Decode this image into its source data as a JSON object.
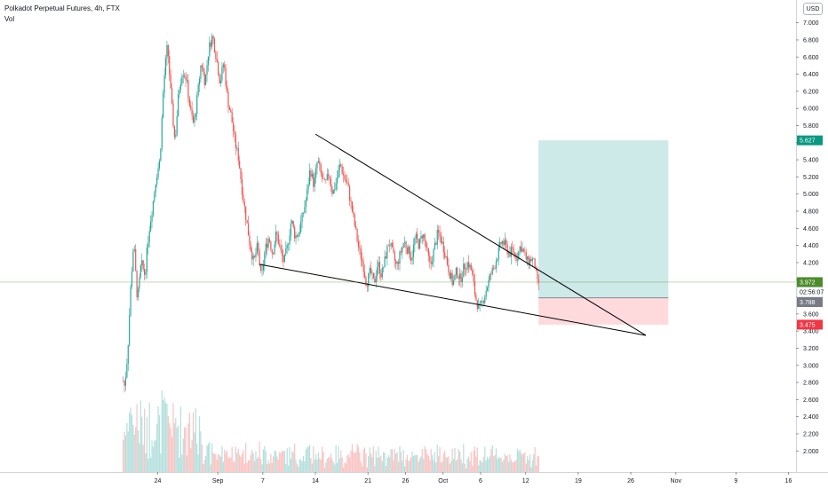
{
  "legend": {
    "symbol_line": "Polkadot Perpetual Futures, 4h, FTX",
    "volume_label": "Vol"
  },
  "currency_button": "USD",
  "colors": {
    "up": "#26a69a",
    "down": "#ef5350",
    "profit_zone": "#b2dfdb",
    "loss_zone": "#ffcdd2",
    "target_badge": "#089981",
    "stop_badge": "#f23645",
    "last_price_badge": "#4c8c2b",
    "countdown_badge": "#ffffff",
    "entry_badge": "#787b86",
    "trendline": "#000000"
  },
  "chart_data": {
    "type": "candlestick",
    "title": "Polkadot Perpetual Futures, 4h, FTX",
    "timeframe": "4h",
    "exchange": "FTX",
    "ylim": [
      1.92,
      7.1
    ],
    "y_ticks": [
      "7.000",
      "6.800",
      "6.600",
      "6.400",
      "6.200",
      "6.000",
      "5.800",
      "5.600",
      "5.400",
      "5.200",
      "5.000",
      "4.800",
      "4.600",
      "4.400",
      "4.200",
      "4.000",
      "3.800",
      "3.600",
      "3.400",
      "3.200",
      "3.000",
      "2.800",
      "2.600",
      "2.400",
      "2.200",
      "2.000"
    ],
    "x_ticks": [
      {
        "label": "24",
        "day": 24.0
      },
      {
        "label": "Sep",
        "day": 32.0
      },
      {
        "label": "7",
        "day": 38.0
      },
      {
        "label": "14",
        "day": 45.0
      },
      {
        "label": "21",
        "day": 52.0
      },
      {
        "label": "26",
        "day": 57.0
      },
      {
        "label": "Oct",
        "day": 62.0
      },
      {
        "label": "6",
        "day": 67.0
      },
      {
        "label": "12",
        "day": 73.0
      },
      {
        "label": "19",
        "day": 80.0
      },
      {
        "label": "26",
        "day": 87.0
      },
      {
        "label": "Nov",
        "day": 93.0
      },
      {
        "label": "9",
        "day": 101.0
      },
      {
        "label": "16",
        "day": 108.0
      }
    ],
    "x_range_days": [
      3.0,
      109.0
    ],
    "price_path": [
      [
        19.4,
        2.82
      ],
      [
        19.6,
        2.75
      ],
      [
        20.0,
        3.15
      ],
      [
        20.4,
        3.9
      ],
      [
        20.8,
        4.45
      ],
      [
        21.3,
        3.75
      ],
      [
        21.8,
        4.2
      ],
      [
        22.3,
        4.05
      ],
      [
        22.8,
        4.55
      ],
      [
        23.3,
        4.85
      ],
      [
        23.8,
        5.2
      ],
      [
        24.3,
        5.4
      ],
      [
        24.8,
        6.3
      ],
      [
        25.3,
        6.75
      ],
      [
        25.8,
        6.1
      ],
      [
        26.3,
        5.6
      ],
      [
        26.8,
        6.2
      ],
      [
        27.3,
        6.45
      ],
      [
        27.8,
        6.35
      ],
      [
        28.3,
        6.0
      ],
      [
        28.8,
        5.8
      ],
      [
        29.3,
        6.15
      ],
      [
        29.8,
        6.55
      ],
      [
        30.3,
        6.3
      ],
      [
        30.8,
        6.7
      ],
      [
        31.3,
        6.85
      ],
      [
        31.8,
        6.6
      ],
      [
        32.3,
        6.3
      ],
      [
        32.8,
        6.55
      ],
      [
        33.3,
        6.1
      ],
      [
        33.8,
        5.9
      ],
      [
        34.3,
        5.6
      ],
      [
        34.8,
        5.4
      ],
      [
        35.3,
        5.0
      ],
      [
        35.8,
        4.7
      ],
      [
        36.3,
        4.4
      ],
      [
        36.8,
        4.2
      ],
      [
        37.3,
        4.4
      ],
      [
        37.8,
        4.0
      ],
      [
        38.3,
        4.35
      ],
      [
        38.8,
        4.5
      ],
      [
        39.3,
        4.3
      ],
      [
        39.8,
        4.55
      ],
      [
        40.3,
        4.35
      ],
      [
        40.8,
        4.2
      ],
      [
        41.3,
        4.4
      ],
      [
        41.8,
        4.7
      ],
      [
        42.3,
        4.5
      ],
      [
        42.8,
        4.55
      ],
      [
        43.3,
        4.75
      ],
      [
        43.8,
        4.95
      ],
      [
        44.3,
        5.3
      ],
      [
        44.8,
        5.1
      ],
      [
        45.3,
        5.4
      ],
      [
        45.8,
        5.2
      ],
      [
        46.3,
        5.1
      ],
      [
        46.8,
        5.25
      ],
      [
        47.3,
        5.0
      ],
      [
        47.8,
        5.15
      ],
      [
        48.3,
        5.35
      ],
      [
        48.8,
        5.2
      ],
      [
        49.3,
        5.1
      ],
      [
        49.8,
        4.85
      ],
      [
        50.3,
        4.6
      ],
      [
        50.8,
        4.35
      ],
      [
        51.3,
        4.2
      ],
      [
        51.8,
        3.95
      ],
      [
        52.3,
        4.1
      ],
      [
        52.8,
        3.95
      ],
      [
        53.3,
        4.2
      ],
      [
        53.8,
        4.05
      ],
      [
        54.3,
        4.25
      ],
      [
        54.8,
        4.45
      ],
      [
        55.3,
        4.3
      ],
      [
        55.8,
        4.15
      ],
      [
        56.3,
        4.3
      ],
      [
        56.8,
        4.45
      ],
      [
        57.3,
        4.35
      ],
      [
        57.8,
        4.25
      ],
      [
        58.3,
        4.5
      ],
      [
        58.8,
        4.4
      ],
      [
        59.3,
        4.55
      ],
      [
        59.8,
        4.35
      ],
      [
        60.3,
        4.15
      ],
      [
        60.8,
        4.35
      ],
      [
        61.3,
        4.55
      ],
      [
        61.8,
        4.45
      ],
      [
        62.3,
        4.3
      ],
      [
        62.8,
        4.1
      ],
      [
        63.3,
        3.95
      ],
      [
        63.8,
        4.1
      ],
      [
        64.3,
        4.0
      ],
      [
        64.8,
        4.15
      ],
      [
        65.3,
        4.2
      ],
      [
        65.8,
        4.1
      ],
      [
        66.3,
        3.8
      ],
      [
        66.8,
        3.65
      ],
      [
        67.3,
        3.75
      ],
      [
        67.8,
        3.9
      ],
      [
        68.3,
        4.05
      ],
      [
        68.8,
        4.15
      ],
      [
        69.3,
        4.3
      ],
      [
        69.8,
        4.45
      ],
      [
        70.3,
        4.4
      ],
      [
        70.8,
        4.3
      ],
      [
        71.3,
        4.35
      ],
      [
        71.8,
        4.25
      ],
      [
        72.3,
        4.4
      ],
      [
        72.8,
        4.3
      ],
      [
        73.3,
        4.2
      ],
      [
        73.8,
        4.25
      ],
      [
        74.3,
        4.15
      ],
      [
        74.5,
        3.95
      ],
      [
        74.8,
        3.97
      ]
    ],
    "trendlines": [
      {
        "name": "upper",
        "start": [
          45.0,
          5.7
        ],
        "end": [
          89.0,
          3.35
        ]
      },
      {
        "name": "lower",
        "start": [
          37.5,
          4.18
        ],
        "end": [
          89.0,
          3.35
        ]
      }
    ],
    "long_position": {
      "start_day": 74.7,
      "end_day": 92.0,
      "entry": 3.788,
      "target": 5.627,
      "stop": 3.475
    },
    "price_badges": [
      {
        "name": "target-badge",
        "label": "5.627",
        "value": 5.627,
        "color_key": "target_badge"
      },
      {
        "name": "last-price-badge",
        "label": "3.972",
        "value": 3.972,
        "color_key": "last_price_badge"
      },
      {
        "name": "countdown-badge",
        "label": "02:56:07",
        "value": 3.855,
        "color_key": "countdown_badge"
      },
      {
        "name": "entry-badge",
        "label": "3.788",
        "value": 3.738,
        "color_key": "entry_badge"
      },
      {
        "name": "stop-badge",
        "label": "3.475",
        "value": 3.475,
        "color_key": "stop_badge"
      }
    ],
    "last_price": 3.972,
    "countdown": "02:56:07",
    "grid": false
  }
}
